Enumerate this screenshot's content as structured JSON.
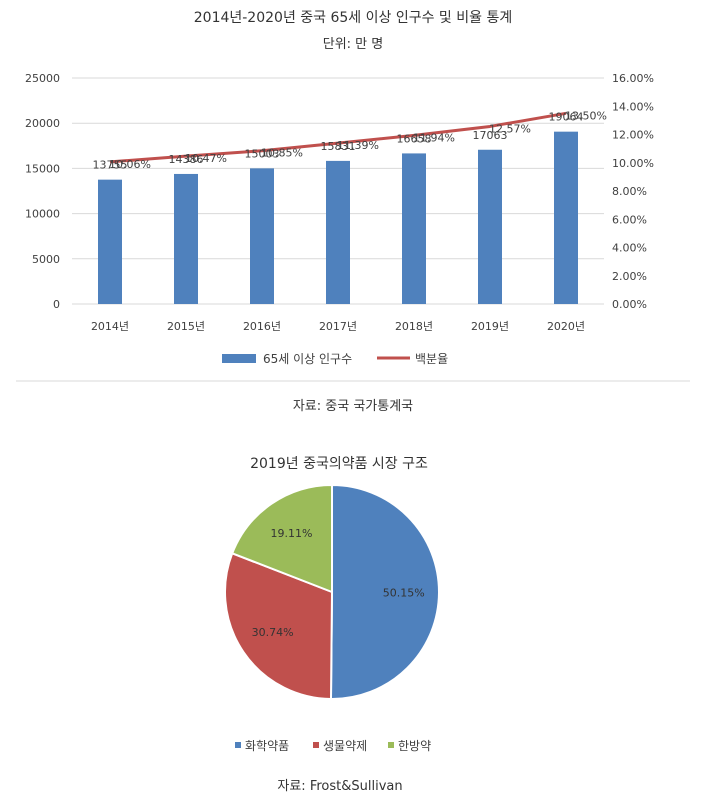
{
  "chart_data": [
    {
      "type": "bar",
      "title": "2014년-2020년 중국 65세 이상 인구수 및 비율 통계",
      "subtitle": "단위: 만 명",
      "categories": [
        "2014년",
        "2015년",
        "2016년",
        "2017년",
        "2018년",
        "2019년",
        "2020년"
      ],
      "series": [
        {
          "name": "65세 이상 인구수",
          "type": "bar",
          "axis": "left",
          "color": "#4f81bd",
          "values": [
            13755,
            14386,
            15003,
            15831,
            16658,
            17063,
            19064
          ],
          "labels": [
            "13755",
            "14386",
            "15003",
            "15831",
            "16658",
            "17063",
            "19064"
          ]
        },
        {
          "name": "백분율",
          "type": "line",
          "axis": "right",
          "color": "#c0504d",
          "values": [
            10.06,
            10.47,
            10.85,
            11.39,
            11.94,
            12.57,
            13.5
          ],
          "labels": [
            "10.06%",
            "10.47%",
            "10.85%",
            "11.39%",
            "11.94%",
            "12.57%",
            "13.50%"
          ]
        }
      ],
      "ylim": [
        0,
        25000
      ],
      "y_ticks": [
        "0",
        "5000",
        "10000",
        "15000",
        "20000",
        "25000"
      ],
      "y2lim": [
        0,
        16
      ],
      "y2_ticks": [
        "0.00%",
        "2.00%",
        "4.00%",
        "6.00%",
        "8.00%",
        "10.00%",
        "12.00%",
        "14.00%",
        "16.00%"
      ],
      "grid": true,
      "legend": "bottom",
      "source": "자료: 중국 국가통계국"
    },
    {
      "type": "pie",
      "title": "2019년 중국의약품 시장 구조",
      "categories": [
        "화학약품",
        "생물약제",
        "한방약"
      ],
      "values": [
        50.15,
        30.74,
        19.11
      ],
      "labels": [
        "50.15%",
        "30.74%",
        "19.11%"
      ],
      "colors": [
        "#4f81bd",
        "#c0504d",
        "#9bbb59"
      ],
      "legend": "bottom",
      "source": "자료: Frost&Sullivan"
    }
  ]
}
